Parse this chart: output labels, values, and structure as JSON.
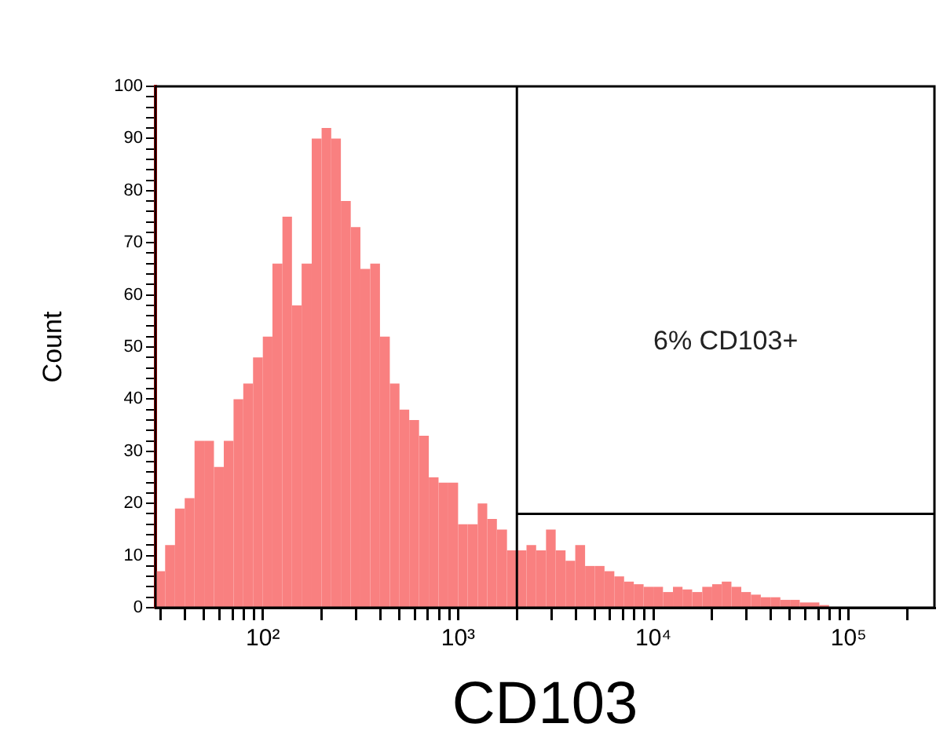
{
  "chart_data": {
    "type": "histogram",
    "xlabel": "CD103",
    "ylabel": "Count",
    "color": "#f98080",
    "bins": [
      28.2,
      31.6,
      35.5,
      39.8,
      44.7,
      50.1,
      56.2,
      63.1,
      70.8,
      79.4,
      89.1,
      100,
      112,
      126,
      141,
      158,
      178,
      200,
      224,
      251,
      282,
      316,
      355,
      398,
      447,
      501,
      562,
      631,
      708,
      794,
      891,
      1000,
      1120,
      1260,
      1410,
      1580,
      1780,
      2000,
      2240,
      2510,
      2820,
      3160,
      3550,
      3980,
      4470,
      5010,
      5620,
      6310,
      7080,
      7940,
      8910,
      10000,
      11200,
      12600,
      14100,
      15800,
      17800,
      20000,
      22400,
      25100,
      28200,
      31600,
      35500,
      39800,
      44700,
      50100,
      56200,
      63100,
      70800,
      79400
    ],
    "values": [
      7,
      12,
      19,
      21,
      32,
      32,
      27,
      32,
      40,
      43,
      48,
      52,
      66,
      75,
      58,
      66,
      90,
      92,
      90,
      78,
      73,
      65,
      66,
      52,
      43,
      38,
      36,
      33,
      25,
      24,
      24,
      16,
      16,
      20,
      17,
      15,
      11,
      11,
      12,
      11,
      15,
      11,
      9,
      12,
      8,
      8,
      7,
      6,
      5,
      4.5,
      4,
      4,
      3,
      4,
      3.5,
      3,
      4,
      4.5,
      5,
      4,
      3,
      2.5,
      2,
      2,
      1.5,
      1.5,
      1,
      1,
      0.5
    ],
    "log": "x",
    "xlim": [
      28.2,
      275000
    ],
    "xticks": [
      {
        "value": 30,
        "label": null
      },
      {
        "value": 40,
        "label": null
      },
      {
        "value": 50,
        "label": null
      },
      {
        "value": 60,
        "label": null
      },
      {
        "value": 70,
        "label": null
      },
      {
        "value": 80,
        "label": null
      },
      {
        "value": 90,
        "label": null
      },
      {
        "value": 100,
        "label": "10²"
      },
      {
        "value": 200,
        "label": null
      },
      {
        "value": 300,
        "label": null
      },
      {
        "value": 400,
        "label": null
      },
      {
        "value": 500,
        "label": null
      },
      {
        "value": 600,
        "label": null
      },
      {
        "value": 700,
        "label": null
      },
      {
        "value": 800,
        "label": null
      },
      {
        "value": 900,
        "label": null
      },
      {
        "value": 1000,
        "label": "10³"
      },
      {
        "value": 2000,
        "label": null
      },
      {
        "value": 3000,
        "label": null
      },
      {
        "value": 4000,
        "label": null
      },
      {
        "value": 5000,
        "label": null
      },
      {
        "value": 6000,
        "label": null
      },
      {
        "value": 7000,
        "label": null
      },
      {
        "value": 8000,
        "label": null
      },
      {
        "value": 9000,
        "label": null
      },
      {
        "value": 10000,
        "label": "10⁴"
      },
      {
        "value": 20000,
        "label": null
      },
      {
        "value": 30000,
        "label": null
      },
      {
        "value": 40000,
        "label": null
      },
      {
        "value": 50000,
        "label": null
      },
      {
        "value": 60000,
        "label": null
      },
      {
        "value": 70000,
        "label": null
      },
      {
        "value": 80000,
        "label": null
      },
      {
        "value": 90000,
        "label": null
      },
      {
        "value": 100000,
        "label": "10⁵"
      },
      {
        "value": 200000,
        "label": null
      }
    ],
    "ylim": [
      0,
      100
    ],
    "yticks": [
      0,
      {
        "value": 2,
        "label": null
      },
      {
        "value": 4,
        "label": null
      },
      {
        "value": 6,
        "label": null
      },
      {
        "value": 8,
        "label": null
      },
      10,
      {
        "value": 12,
        "label": null
      },
      {
        "value": 14,
        "label": null
      },
      {
        "value": 16,
        "label": null
      },
      {
        "value": 18,
        "label": null
      },
      20,
      {
        "value": 22,
        "label": null
      },
      {
        "value": 24,
        "label": null
      },
      {
        "value": 26,
        "label": null
      },
      {
        "value": 28,
        "label": null
      },
      30,
      {
        "value": 32,
        "label": null
      },
      {
        "value": 34,
        "label": null
      },
      {
        "value": 36,
        "label": null
      },
      {
        "value": 38,
        "label": null
      },
      40,
      {
        "value": 42,
        "label": null
      },
      {
        "value": 44,
        "label": null
      },
      {
        "value": 46,
        "label": null
      },
      {
        "value": 48,
        "label": null
      },
      50,
      {
        "value": 52,
        "label": null
      },
      {
        "value": 54,
        "label": null
      },
      {
        "value": 56,
        "label": null
      },
      {
        "value": 58,
        "label": null
      },
      60,
      {
        "value": 62,
        "label": null
      },
      {
        "value": 64,
        "label": null
      },
      {
        "value": 66,
        "label": null
      },
      {
        "value": 68,
        "label": null
      },
      70,
      {
        "value": 72,
        "label": null
      },
      {
        "value": 74,
        "label": null
      },
      {
        "value": 76,
        "label": null
      },
      {
        "value": 78,
        "label": null
      },
      80,
      {
        "value": 82,
        "label": null
      },
      {
        "value": 84,
        "label": null
      },
      {
        "value": 86,
        "label": null
      },
      {
        "value": 88,
        "label": null
      },
      90,
      {
        "value": 92,
        "label": null
      },
      {
        "value": 94,
        "label": null
      },
      {
        "value": 96,
        "label": null
      },
      {
        "value": 98,
        "label": null
      },
      100
    ],
    "grid": false,
    "legend": false,
    "ref_lines": [
      {
        "axis": "x",
        "value": 2000,
        "color": "#000000"
      },
      {
        "axis": "y",
        "value": 18,
        "color": "#000000"
      }
    ],
    "annotations": [
      "6% CD103+"
    ]
  }
}
